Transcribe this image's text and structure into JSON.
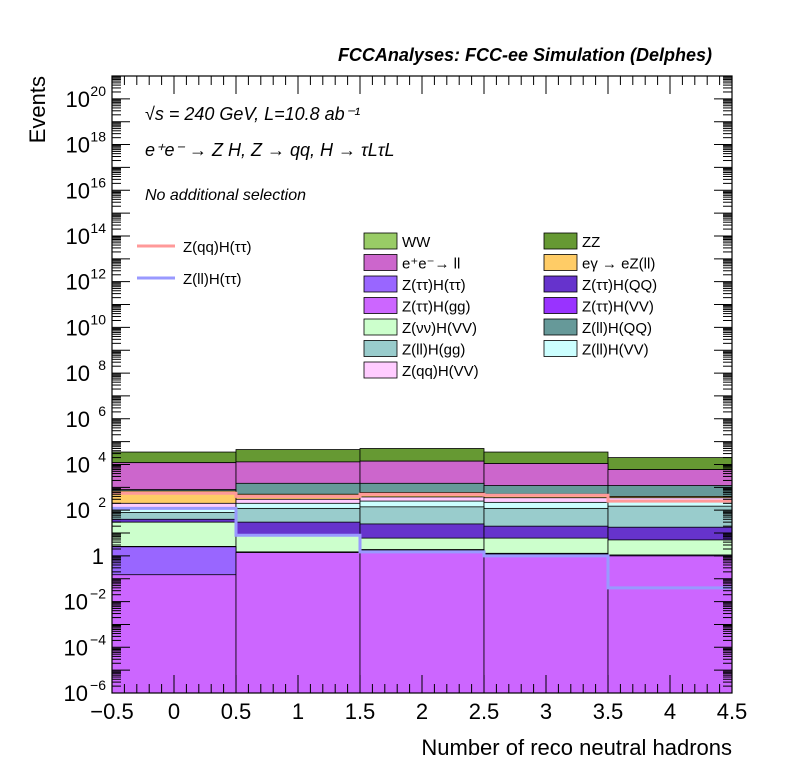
{
  "chart_data": {
    "type": "bar",
    "header": "FCCAnalyses: FCC-ee Simulation (Delphes)",
    "annotations": [
      "√s = 240 GeV, L=10.8 ab⁻¹",
      "e⁺e⁻ → Z H, Z → qq, H → τLτL",
      "No additional selection"
    ],
    "xlabel": "Number of reco neutral hadrons",
    "ylabel": "Events",
    "xlim": [
      -0.5,
      4.5
    ],
    "ylim": [
      1e-06,
      1e+21
    ],
    "log_y": true,
    "x_ticks": [
      "−0.5",
      "0",
      "0.5",
      "1",
      "1.5",
      "2",
      "2.5",
      "3",
      "3.5",
      "4",
      "4.5"
    ],
    "bin_edges": [
      -0.5,
      0.5,
      1.5,
      2.5,
      3.5,
      4.5
    ],
    "stacked_cumulative_tops": [
      {
        "name": "Z(ττ)H(gg)",
        "color": "#cc66ff",
        "values": [
          0.15,
          1.4,
          1.8,
          1.2,
          1.0
        ]
      },
      {
        "name": "Z(ττ)H(ττ)",
        "color": "#9966ff",
        "values": [
          2.5,
          1.4,
          1.8,
          1.2,
          1.0
        ]
      },
      {
        "name": "Z(ττ)H(VV)",
        "color": "#9933ff",
        "values": [
          2.6,
          1.5,
          1.9,
          1.3,
          1.1
        ]
      },
      {
        "name": "Z(νν)H(VV)",
        "color": "#ccffcc",
        "values": [
          30,
          8,
          6,
          6,
          5
        ]
      },
      {
        "name": "Z(ττ)H(QQ)",
        "color": "#6633cc",
        "values": [
          40,
          30,
          25,
          20,
          18
        ]
      },
      {
        "name": "Z(ll)H(gg)",
        "color": "#99cccc",
        "values": [
          80,
          120,
          140,
          120,
          150
        ]
      },
      {
        "name": "Z(ll)H(VV)",
        "color": "#ccffff",
        "values": [
          120,
          200,
          250,
          220,
          250
        ]
      },
      {
        "name": "Z(qq)H(VV)",
        "color": "#ffccff",
        "values": [
          200,
          300,
          380,
          350,
          350
        ]
      },
      {
        "name": "eγ → eZ(ll)",
        "color": "#ffcc66",
        "values": [
          700,
          500,
          600,
          500,
          400
        ]
      },
      {
        "name": "Z(ll)H(QQ)",
        "color": "#669999",
        "values": [
          800,
          1500,
          1500,
          1200,
          1200
        ]
      },
      {
        "name": "e⁺e⁻→ ll",
        "color": "#cc66cc",
        "values": [
          12000,
          13000,
          14000,
          11000,
          6000
        ]
      },
      {
        "name": "WW",
        "color": "#99cc66",
        "values": [
          12000,
          13000,
          14000,
          11000,
          6000
        ]
      },
      {
        "name": "ZZ",
        "color": "#669933",
        "values": [
          35000,
          45000,
          50000,
          35000,
          20000
        ]
      }
    ],
    "overlay_series": [
      {
        "name": "Z(qq)H(ττ)",
        "color": "#ff9999",
        "values": [
          550,
          400,
          500,
          450,
          250
        ]
      },
      {
        "name": "Z(ll)H(ττ)",
        "color": "#9999ff",
        "values": [
          120,
          8,
          1.5,
          1.0,
          0.04
        ]
      }
    ],
    "legend_left": [
      {
        "name": "Z(qq)H(ττ)",
        "color": "#ff9999"
      },
      {
        "name": "Z(ll)H(ττ)",
        "color": "#9999ff"
      }
    ],
    "legend_col1": [
      {
        "name": "WW",
        "color": "#99cc66"
      },
      {
        "name": "e⁺e⁻→ ll",
        "color": "#cc66cc"
      },
      {
        "name": "Z(ττ)H(ττ)",
        "color": "#9966ff"
      },
      {
        "name": "Z(ττ)H(gg)",
        "color": "#cc66ff"
      },
      {
        "name": "Z(νν)H(VV)",
        "color": "#ccffcc"
      },
      {
        "name": "Z(ll)H(gg)",
        "color": "#99cccc"
      },
      {
        "name": "Z(qq)H(VV)",
        "color": "#ffccff"
      }
    ],
    "legend_col2": [
      {
        "name": "ZZ",
        "color": "#669933"
      },
      {
        "name": "eγ → eZ(ll)",
        "color": "#ffcc66"
      },
      {
        "name": "Z(ττ)H(QQ)",
        "color": "#6633cc"
      },
      {
        "name": "Z(ττ)H(VV)",
        "color": "#9933ff"
      },
      {
        "name": "Z(ll)H(QQ)",
        "color": "#669999"
      },
      {
        "name": "Z(ll)H(VV)",
        "color": "#ccffff"
      }
    ]
  }
}
